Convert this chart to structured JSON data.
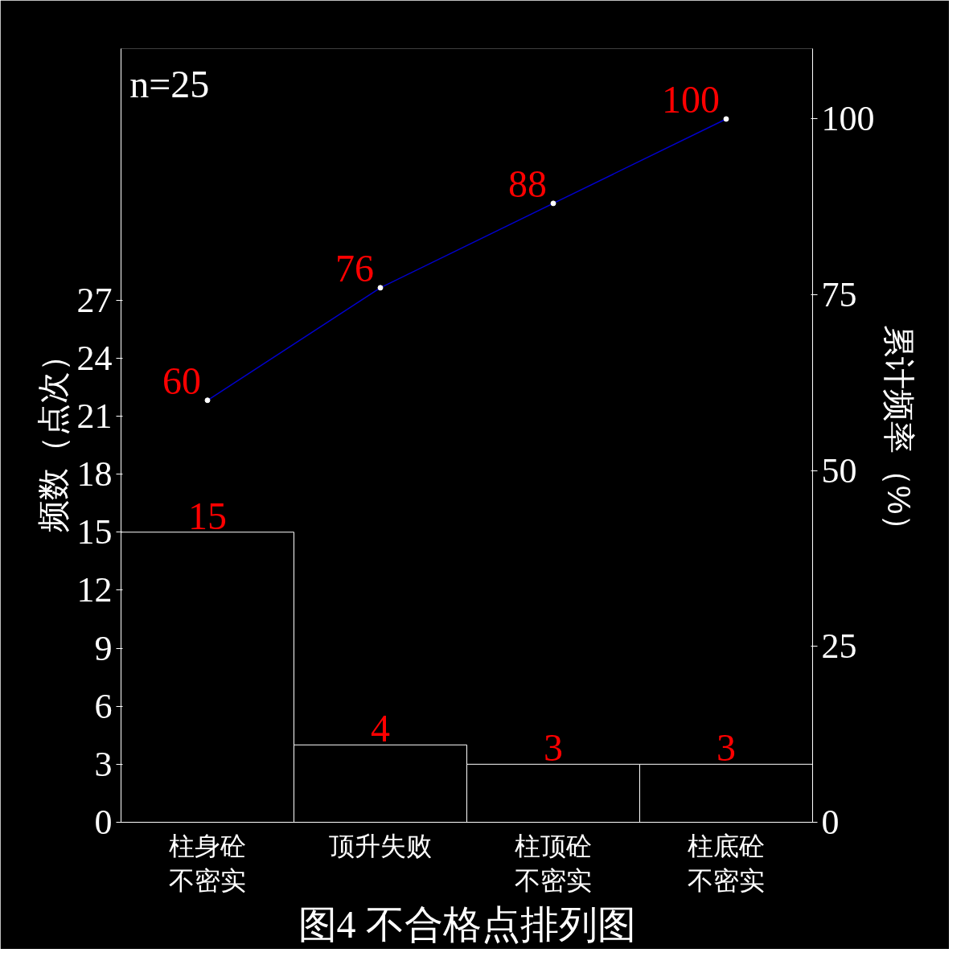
{
  "chart_data": {
    "type": "bar",
    "title": "图4 不合格点排列图",
    "ylabel": "频数（点次）",
    "y2label": "累计频率（%）",
    "categories": [
      "柱身砼不密实",
      "顶升失败",
      "柱顶砼不密实",
      "柱底砼不密实"
    ],
    "series": [
      {
        "color": "#000000",
        "values": [
          15,
          4,
          3,
          3
        ]
      },
      {
        "type": "line",
        "axis": "y2",
        "color": "#0000cc",
        "values": [
          60,
          76,
          88,
          100
        ]
      }
    ],
    "ylim": [
      0,
      40
    ],
    "yticks": [
      0,
      3,
      6,
      9,
      12,
      15,
      18,
      21,
      24,
      27
    ],
    "y2lim": [
      0,
      110
    ],
    "y2ticks": [
      0,
      25,
      50,
      75,
      100
    ],
    "data_labels": true,
    "grid": false,
    "marker": "circle",
    "annotations": [
      "n=25"
    ]
  }
}
